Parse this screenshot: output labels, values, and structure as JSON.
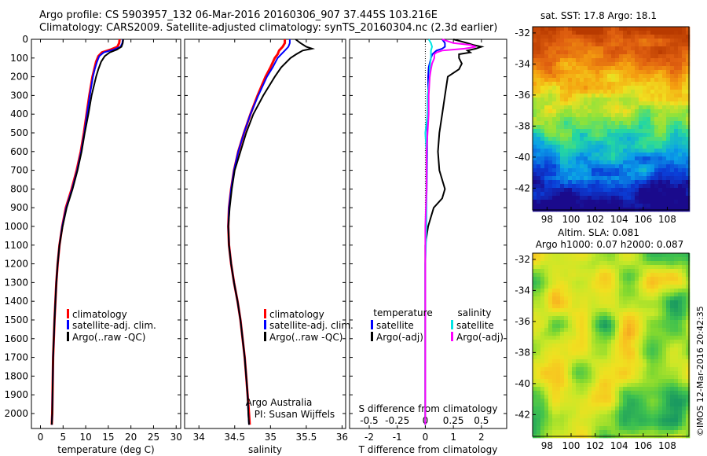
{
  "header": {
    "line1": "Argo profile: CS 5903957_132 06-Mar-2016 20160306_907 37.445S 103.216E",
    "line2": "Climatology: CARS2009. Satellite-adjusted climatology: synTS_20160304.nc (2.3d earlier)"
  },
  "side_label": "©IMOS 12-Mar-2016 20:42:35",
  "colors": {
    "climatology": "#ff0000",
    "satellite": "#0000ff",
    "argo": "#000000",
    "cyan": "#00e5e5",
    "magenta": "#ff00ff"
  },
  "chart_data": [
    {
      "type": "line",
      "name": "temperature",
      "xlabel": "temperature (deg C)",
      "xlim": [
        -2,
        31
      ],
      "ylim": [
        2080,
        0
      ],
      "xticks": [
        "0",
        "5",
        "10",
        "15",
        "20",
        "25",
        "30"
      ],
      "xtick_values": [
        0,
        5,
        10,
        15,
        20,
        25,
        30
      ],
      "yticks": [
        "0",
        "100",
        "200",
        "300",
        "400",
        "500",
        "600",
        "700",
        "800",
        "900",
        "1000",
        "1100",
        "1200",
        "1300",
        "1400",
        "1500",
        "1600",
        "1700",
        "1800",
        "1900",
        "2000"
      ],
      "legend": [
        "climatology",
        "satellite-adj. clim.",
        "Argo(..raw -QC)"
      ],
      "series": [
        {
          "name": "climatology",
          "depth": [
            0,
            20,
            40,
            55,
            70,
            90,
            120,
            160,
            200,
            300,
            400,
            500,
            600,
            700,
            800,
            900,
            1000,
            1100,
            1200,
            1300,
            1500,
            1700,
            2000,
            2060
          ],
          "values": [
            17.5,
            17.4,
            17.0,
            15.5,
            13.6,
            12.8,
            12.3,
            11.9,
            11.5,
            10.8,
            10.2,
            9.6,
            8.9,
            8.0,
            6.9,
            5.6,
            4.8,
            4.2,
            3.8,
            3.5,
            3.1,
            2.8,
            2.6,
            2.5
          ]
        },
        {
          "name": "satellite-adj. clim.",
          "depth": [
            0,
            20,
            40,
            55,
            70,
            90,
            120,
            160,
            200,
            300,
            400,
            500,
            600,
            700,
            800,
            900,
            1000,
            1100,
            1200,
            1300,
            1500,
            1700,
            2000,
            2060
          ],
          "values": [
            18.2,
            18.1,
            17.7,
            16.2,
            14.0,
            13.0,
            12.5,
            12.0,
            11.6,
            10.9,
            10.3,
            9.7,
            9.0,
            8.1,
            7.0,
            5.7,
            4.8,
            4.2,
            3.8,
            3.5,
            3.1,
            2.8,
            2.6,
            2.5
          ]
        },
        {
          "name": "Argo(..raw -QC)",
          "depth": [
            0,
            20,
            40,
            55,
            70,
            90,
            120,
            160,
            200,
            300,
            400,
            500,
            600,
            700,
            800,
            900,
            1000,
            1100,
            1200,
            1300,
            1500,
            1700,
            2000,
            2060
          ],
          "values": [
            18.3,
            18.2,
            17.9,
            16.9,
            15.3,
            14.2,
            13.4,
            12.8,
            12.3,
            11.3,
            10.6,
            9.8,
            9.1,
            8.2,
            7.1,
            5.8,
            4.9,
            4.2,
            3.8,
            3.5,
            3.1,
            2.8,
            2.6,
            2.5
          ]
        }
      ]
    },
    {
      "type": "line",
      "name": "salinity",
      "xlabel": "salinity",
      "xlim": [
        33.8,
        36.05
      ],
      "ylim": [
        2080,
        0
      ],
      "xticks": [
        "34",
        "34.5",
        "35",
        "35.5",
        "36"
      ],
      "xtick_values": [
        34,
        34.5,
        35,
        35.5,
        36
      ],
      "legend": [
        "climatology",
        "satellite-adj. clim.",
        "Argo(..raw -QC)"
      ],
      "annotation": [
        "Argo Australia",
        "PI: Susan Wijffels"
      ],
      "series": [
        {
          "name": "climatology",
          "depth": [
            0,
            20,
            40,
            60,
            80,
            100,
            150,
            200,
            300,
            400,
            500,
            600,
            700,
            800,
            900,
            1000,
            1100,
            1200,
            1300,
            1400,
            1500,
            1600,
            1700,
            1800,
            1900,
            2000,
            2060
          ],
          "values": [
            35.2,
            35.2,
            35.17,
            35.12,
            35.1,
            35.06,
            35.0,
            34.93,
            34.82,
            34.72,
            34.63,
            34.55,
            34.49,
            34.45,
            34.42,
            34.41,
            34.42,
            34.45,
            34.49,
            34.54,
            34.58,
            34.61,
            34.64,
            34.66,
            34.68,
            34.7,
            34.71
          ]
        },
        {
          "name": "satellite-adj. clim.",
          "depth": [
            0,
            20,
            40,
            60,
            80,
            100,
            150,
            200,
            300,
            400,
            500,
            600,
            700,
            800,
            900,
            1000,
            1100,
            1200,
            1300,
            1400,
            1500,
            1600,
            1700,
            1800,
            1900,
            2000,
            2060
          ],
          "values": [
            35.27,
            35.27,
            35.25,
            35.2,
            35.15,
            35.1,
            35.03,
            34.95,
            34.83,
            34.72,
            34.63,
            34.55,
            34.49,
            34.45,
            34.42,
            34.41,
            34.42,
            34.45,
            34.49,
            34.54,
            34.58,
            34.61,
            34.64,
            34.66,
            34.68,
            34.69,
            34.7
          ]
        },
        {
          "name": "Argo(..raw -QC)",
          "depth": [
            0,
            20,
            40,
            50,
            60,
            80,
            100,
            150,
            200,
            300,
            400,
            500,
            600,
            700,
            800,
            900,
            1000,
            1100,
            1200,
            1300,
            1400,
            1500,
            1600,
            1700,
            1800,
            1900,
            2000,
            2060
          ],
          "values": [
            35.35,
            35.42,
            35.5,
            35.58,
            35.45,
            35.36,
            35.28,
            35.15,
            35.06,
            34.9,
            34.76,
            34.66,
            34.58,
            34.5,
            34.46,
            34.43,
            34.41,
            34.42,
            34.45,
            34.49,
            34.54,
            34.58,
            34.61,
            34.64,
            34.66,
            34.68,
            34.69,
            34.7
          ]
        }
      ]
    },
    {
      "type": "line",
      "name": "difference",
      "xlabel": "T difference from climatology",
      "xlabel2": "S difference from climatology",
      "xlim": [
        -2.7,
        2.9
      ],
      "ylim": [
        2080,
        0
      ],
      "xticks": [
        "-2",
        "-1",
        "0",
        "1",
        "2"
      ],
      "xtick_values": [
        -2,
        -1,
        0,
        1,
        2
      ],
      "xticks2": [
        "-0.5",
        "-0.25",
        "0",
        "0.25",
        "0.5"
      ],
      "xtick2_values": [
        -0.5,
        -0.25,
        0,
        0.25,
        0.5
      ],
      "legend_headers": [
        "temperature",
        "salinity"
      ],
      "legend": [
        "satellite",
        "Argo(-adj)",
        "satellite",
        "Argo(-adj)"
      ],
      "series": [
        {
          "name": "temperature satellite",
          "depth": [
            0,
            20,
            40,
            50,
            60,
            80,
            100,
            150,
            200,
            300,
            400,
            600,
            800,
            1000,
            1200,
            1500,
            2000,
            2060
          ],
          "values": [
            0.6,
            0.7,
            0.7,
            0.6,
            0.4,
            0.25,
            0.2,
            0.12,
            0.1,
            0.1,
            0.08,
            0.06,
            0.05,
            0.02,
            0,
            0,
            0,
            0
          ]
        },
        {
          "name": "temperature Argo(-adj)",
          "depth": [
            0,
            20,
            30,
            40,
            50,
            60,
            70,
            80,
            100,
            130,
            160,
            200,
            300,
            400,
            500,
            600,
            700,
            800,
            850,
            900,
            1000,
            1100,
            1200,
            1400,
            1600,
            2000,
            2060
          ],
          "values": [
            1.0,
            1.5,
            1.7,
            2.0,
            1.8,
            1.5,
            1.6,
            1.2,
            1.2,
            1.3,
            1.2,
            0.8,
            0.7,
            0.6,
            0.5,
            0.45,
            0.5,
            0.7,
            0.6,
            0.3,
            0.1,
            0,
            0,
            0,
            0,
            0,
            0
          ]
        },
        {
          "name": "salinity satellite",
          "depth": [
            0,
            20,
            40,
            60,
            100,
            150,
            200,
            300,
            400,
            500,
            600,
            800,
            1000,
            1200,
            1500,
            2000,
            2060
          ],
          "values": [
            0.03,
            0.05,
            0.06,
            0.05,
            0.05,
            0.04,
            0.04,
            0.02,
            0.02,
            0.0,
            0.01,
            0.01,
            0.01,
            0.0,
            0,
            0,
            0
          ]
        },
        {
          "name": "salinity Argo(-adj)",
          "depth": [
            0,
            20,
            30,
            40,
            50,
            60,
            70,
            80,
            100,
            130,
            160,
            200,
            300,
            400,
            500,
            600,
            800,
            1000,
            2000,
            2060
          ],
          "values": [
            0.15,
            0.25,
            0.4,
            0.45,
            0.35,
            0.15,
            0.1,
            0.08,
            0.08,
            0.06,
            0.05,
            0.04,
            0.03,
            0.03,
            0.02,
            0.01,
            0.01,
            0,
            0,
            0
          ]
        }
      ]
    },
    {
      "type": "heatmap",
      "name": "sst-map",
      "title": "sat. SST: 17.8 Argo: 18.1",
      "xticks": [
        "98",
        "100",
        "102",
        "104",
        "106",
        "108"
      ],
      "xtick_values": [
        98,
        100,
        102,
        104,
        106,
        108
      ],
      "yticks": [
        "-32",
        "-34",
        "-36",
        "-38",
        "-40",
        "-42"
      ],
      "ytick_values": [
        -32,
        -34,
        -36,
        -38,
        -40,
        -42
      ],
      "xlim": [
        96.8,
        109.8
      ],
      "ylim": [
        -31.6,
        -43.4
      ],
      "colorscale": [
        "#1a0a8c",
        "#0a3fd8",
        "#0aa0e8",
        "#25d8a0",
        "#8be23c",
        "#f0e020",
        "#f5a010",
        "#e06010",
        "#b83a00"
      ]
    },
    {
      "type": "heatmap",
      "name": "sla-map",
      "title": "Altim. SLA: 0.081",
      "subtitle": "Argo h1000: 0.07 h2000: 0.087",
      "xticks": [
        "98",
        "100",
        "102",
        "104",
        "106",
        "108"
      ],
      "xtick_values": [
        98,
        100,
        102,
        104,
        106,
        108
      ],
      "yticks": [
        "-32",
        "-34",
        "-36",
        "-38",
        "-40",
        "-42"
      ],
      "ytick_values": [
        -32,
        -34,
        -36,
        -38,
        -40,
        -42
      ],
      "xlim": [
        96.8,
        109.8
      ],
      "ylim": [
        -31.6,
        -43.4
      ]
    }
  ]
}
